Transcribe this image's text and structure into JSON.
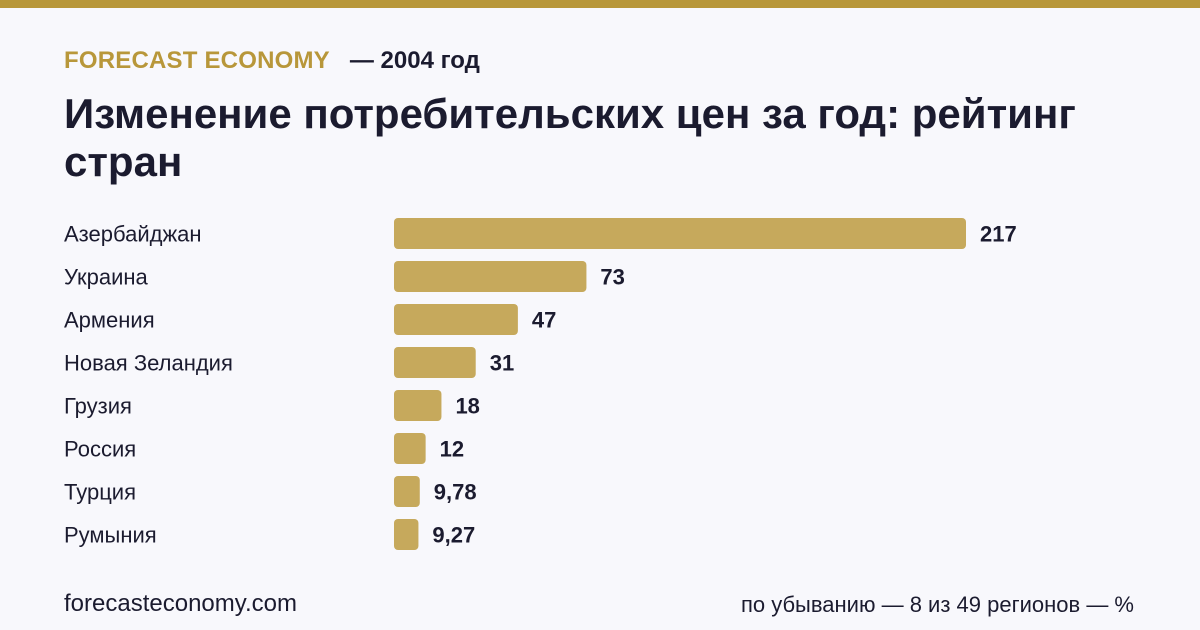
{
  "header": {
    "brand": "FORECAST ECONOMY",
    "year_label": "— 2004 год",
    "title": "Изменение потребительских цен за год: рейтинг стран"
  },
  "colors": {
    "accent": "#b8973a",
    "bar": "#c6a95c",
    "text": "#1b1b2f",
    "background": "#f8f8fc"
  },
  "chart_data": {
    "type": "bar",
    "orientation": "horizontal",
    "categories": [
      "Азербайджан",
      "Украина",
      "Армения",
      "Новая Зеландия",
      "Грузия",
      "Россия",
      "Турция",
      "Румыния"
    ],
    "values": [
      217,
      73,
      47,
      31,
      18,
      12,
      9.78,
      9.27
    ],
    "value_labels": [
      "217",
      "73",
      "47",
      "31",
      "18",
      "12",
      "9,78",
      "9,27"
    ],
    "title": "Изменение потребительских цен за год: рейтинг стран",
    "unit": "%",
    "xlim": [
      0,
      217
    ]
  },
  "footer": {
    "site": "forecasteconomy.com",
    "note": "по убыванию — 8 из 49 регионов — %"
  }
}
